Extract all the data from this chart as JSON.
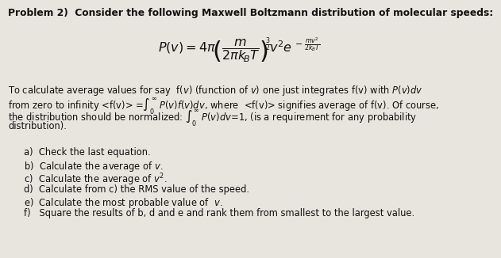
{
  "bg_color": "#e8e4de",
  "title_line": "Problem 2)  Consider the following Maxwell Boltzmann distribution of molecular speeds:",
  "font_size_title": 8.8,
  "font_size_body": 8.3,
  "font_size_eq": 11.5,
  "text_color": "#111111",
  "para_lines": [
    "To calculate average values for say  f(ν) (function of ν) one just integrates f(v) with P(ν)dν",
    "from zero to infinity <f(v)> =∫₀∞ P(ν)f(ν)dν, where  <f(v)> signifies average of f(v). Of course,",
    "the distribution should be normalized: ∫₀∞ P(ν)dν=1, (is a requirement for any probability",
    "distribution)."
  ],
  "items": [
    "a)  Check the last equation.",
    "b)  Calculate the average of v.",
    "c)  Calculate the average of v².",
    "d)  Calculate from c) the RMS value of the speed.",
    "e)  Calculate the most probable value of  v.",
    "f)   Square the results of b, d and e and rank them from smallest to the largest value."
  ]
}
